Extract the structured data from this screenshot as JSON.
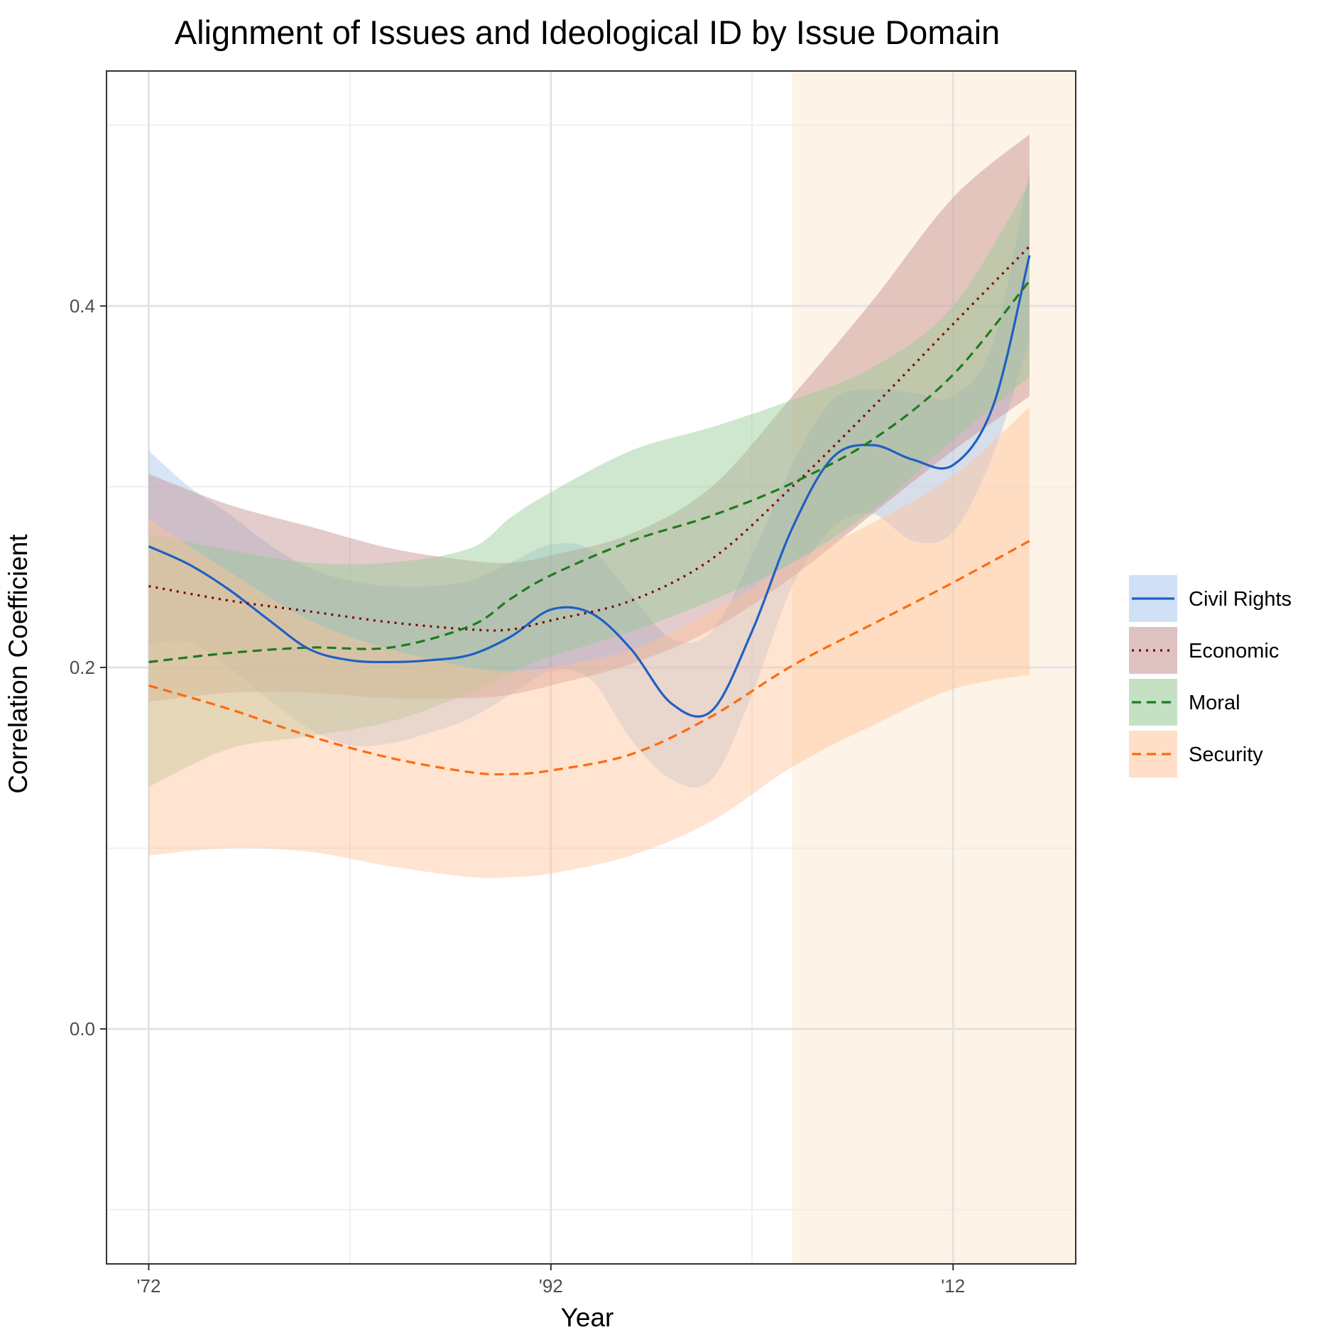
{
  "chart_data": {
    "type": "line",
    "title": "Alignment of Issues and Ideological ID by Issue Domain",
    "xlabel": "Year",
    "ylabel": "Correlation Coefficient",
    "x_ticks": [
      {
        "value": 1972,
        "label": "'72"
      },
      {
        "value": 1992,
        "label": "'92"
      },
      {
        "value": 2012,
        "label": "'12"
      }
    ],
    "y_ticks": [
      {
        "value": 0.0,
        "label": "0.0"
      },
      {
        "value": 0.2,
        "label": "0.2"
      },
      {
        "value": 0.4,
        "label": "0.4"
      }
    ],
    "xlim": [
      1969.9,
      2018.1
    ],
    "ylim": [
      -0.13,
      0.53
    ],
    "grid": true,
    "legend_position": "right",
    "highlight_region": {
      "x_start": 2004,
      "x_end": 2018.1,
      "color": "#fdf3e6"
    },
    "series": [
      {
        "name": "Civil Rights",
        "color": "#1f5fc4",
        "band_color": "#a9c6ee",
        "dash": "solid",
        "x": [
          1972,
          1974,
          1976,
          1978,
          1980,
          1982,
          1984,
          1986,
          1988,
          1990,
          1992,
          1994,
          1996,
          1998,
          2000,
          2002,
          2004,
          2006,
          2008,
          2010,
          2012,
          2014,
          2015.8
        ],
        "y": [
          0.267,
          0.257,
          0.243,
          0.226,
          0.21,
          0.204,
          0.203,
          0.204,
          0.207,
          0.217,
          0.232,
          0.23,
          0.21,
          0.18,
          0.176,
          0.22,
          0.277,
          0.316,
          0.323,
          0.315,
          0.312,
          0.345,
          0.428
        ],
        "lower": [
          0.213,
          0.214,
          0.2,
          0.182,
          0.166,
          0.157,
          0.158,
          0.164,
          0.172,
          0.185,
          0.198,
          0.193,
          0.16,
          0.138,
          0.138,
          0.185,
          0.245,
          0.277,
          0.285,
          0.27,
          0.275,
          0.318,
          0.382
        ],
        "upper": [
          0.32,
          0.3,
          0.285,
          0.268,
          0.255,
          0.248,
          0.245,
          0.245,
          0.248,
          0.258,
          0.268,
          0.265,
          0.24,
          0.216,
          0.22,
          0.262,
          0.312,
          0.348,
          0.354,
          0.352,
          0.35,
          0.38,
          0.475
        ]
      },
      {
        "name": "Economic",
        "color": "#800000",
        "band_color": "#c48f8f",
        "dash": "dotted",
        "x": [
          1972,
          1976,
          1980,
          1984,
          1988,
          1990,
          1992,
          1996,
          2000,
          2004,
          2008,
          2012,
          2015.8
        ],
        "y": [
          0.245,
          0.237,
          0.231,
          0.225,
          0.221,
          0.221,
          0.226,
          0.237,
          0.26,
          0.3,
          0.344,
          0.39,
          0.433
        ],
        "lower": [
          0.181,
          0.186,
          0.186,
          0.183,
          0.183,
          0.185,
          0.19,
          0.202,
          0.221,
          0.25,
          0.285,
          0.32,
          0.35
        ],
        "upper": [
          0.307,
          0.29,
          0.278,
          0.266,
          0.259,
          0.258,
          0.262,
          0.274,
          0.3,
          0.35,
          0.403,
          0.46,
          0.495
        ]
      },
      {
        "name": "Moral",
        "color": "#1e7b1e",
        "band_color": "#94c994",
        "dash": "dashed",
        "x": [
          1972,
          1976,
          1980,
          1984,
          1988,
          1990,
          1992,
          1996,
          2000,
          2004,
          2008,
          2012,
          2015.8
        ],
        "y": [
          0.203,
          0.208,
          0.211,
          0.211,
          0.223,
          0.238,
          0.251,
          0.27,
          0.284,
          0.302,
          0.326,
          0.362,
          0.414
        ],
        "lower": [
          0.134,
          0.155,
          0.162,
          0.17,
          0.186,
          0.197,
          0.206,
          0.22,
          0.237,
          0.258,
          0.287,
          0.326,
          0.361
        ],
        "upper": [
          0.274,
          0.265,
          0.258,
          0.258,
          0.266,
          0.283,
          0.297,
          0.32,
          0.333,
          0.348,
          0.366,
          0.4,
          0.468
        ]
      },
      {
        "name": "Security",
        "color": "#ff6a0d",
        "band_color": "#ffc49a",
        "dash": "dashed",
        "x": [
          1972,
          1976,
          1980,
          1984,
          1988,
          1990,
          1992,
          1996,
          2000,
          2004,
          2008,
          2012,
          2015.8
        ],
        "y": [
          0.19,
          0.177,
          0.162,
          0.15,
          0.142,
          0.141,
          0.143,
          0.152,
          0.173,
          0.201,
          0.224,
          0.247,
          0.27
        ],
        "lower": [
          0.096,
          0.1,
          0.098,
          0.09,
          0.084,
          0.084,
          0.086,
          0.096,
          0.115,
          0.145,
          0.168,
          0.188,
          0.196
        ],
        "upper": [
          0.282,
          0.253,
          0.226,
          0.21,
          0.2,
          0.198,
          0.2,
          0.21,
          0.231,
          0.258,
          0.28,
          0.306,
          0.344
        ]
      }
    ]
  }
}
